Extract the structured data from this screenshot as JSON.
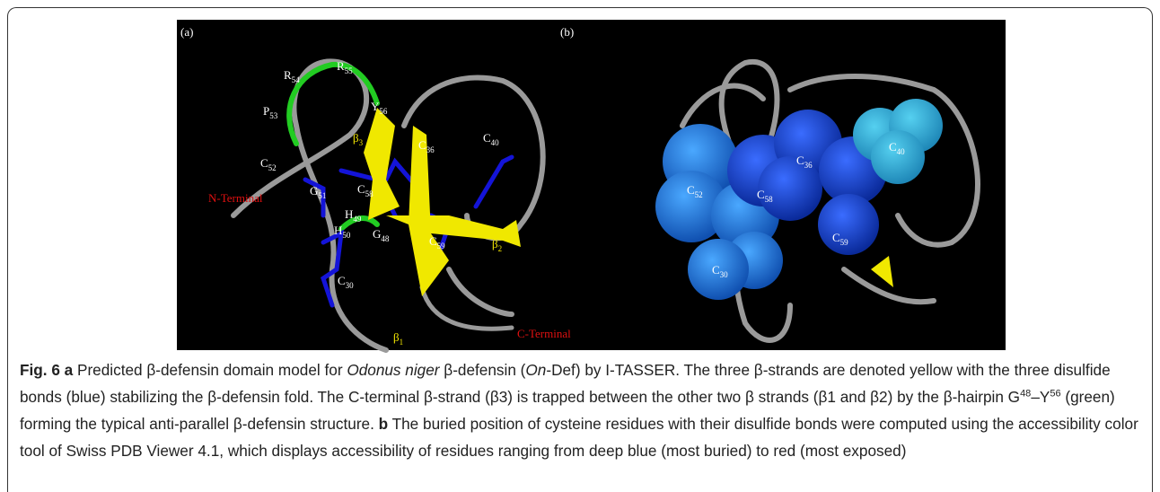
{
  "figure": {
    "panels": [
      {
        "label": "(a)",
        "residues": [
          {
            "name": "R",
            "num": "54",
            "color": "#ffffff"
          },
          {
            "name": "R",
            "num": "55",
            "color": "#ffffff"
          },
          {
            "name": "P",
            "num": "53",
            "color": "#ffffff"
          },
          {
            "name": "Y",
            "num": "56",
            "color": "#ffffff"
          },
          {
            "name": "β",
            "num": "3",
            "color": "#f2e600"
          },
          {
            "name": "C",
            "num": "36",
            "color": "#ffffff"
          },
          {
            "name": "C",
            "num": "40",
            "color": "#ffffff"
          },
          {
            "name": "C",
            "num": "52",
            "color": "#ffffff"
          },
          {
            "name": "G",
            "num": "51",
            "color": "#ffffff"
          },
          {
            "name": "C",
            "num": "58",
            "color": "#ffffff"
          },
          {
            "name": "N-Terminal",
            "num": "",
            "color": "#e01010"
          },
          {
            "name": "H",
            "num": "49",
            "color": "#ffffff"
          },
          {
            "name": "C",
            "num": "59",
            "color": "#ffffff"
          },
          {
            "name": "H",
            "num": "50",
            "color": "#ffffff"
          },
          {
            "name": "G",
            "num": "48",
            "color": "#ffffff"
          },
          {
            "name": "β",
            "num": "2",
            "color": "#f2e600"
          },
          {
            "name": "β",
            "num": "1",
            "color": "#f2e600"
          },
          {
            "name": "C",
            "num": "30",
            "color": "#ffffff"
          },
          {
            "name": "C-Terminal",
            "num": "",
            "color": "#e01010"
          }
        ]
      },
      {
        "label": "(b)",
        "residues": [
          {
            "name": "C",
            "num": "40",
            "color": "#ffffff"
          },
          {
            "name": "C",
            "num": "36",
            "color": "#ffffff"
          },
          {
            "name": "C",
            "num": "52",
            "color": "#ffffff"
          },
          {
            "name": "C",
            "num": "58",
            "color": "#ffffff"
          },
          {
            "name": "C",
            "num": "59",
            "color": "#ffffff"
          },
          {
            "name": "C",
            "num": "30",
            "color": "#ffffff"
          }
        ]
      }
    ],
    "caption": [
      {
        "text": "Fig. 6 a",
        "style": "bold"
      },
      {
        "text": " Predicted β-defensin domain model for ",
        "style": "normal"
      },
      {
        "text": "Odonus niger",
        "style": "italic"
      },
      {
        "text": " β-defensin (",
        "style": "normal"
      },
      {
        "text": "On",
        "style": "italic"
      },
      {
        "text": "-Def) by I-TASSER. The three β-strands are denoted yellow with the three disulfide bonds (blue) stabilizing the β-defensin fold. The C-terminal β-strand (β3) is trapped between the other two β strands (β1 and β2) by the β-hairpin G",
        "style": "normal"
      },
      {
        "text": "48",
        "style": "sup"
      },
      {
        "text": "–Y",
        "style": "normal"
      },
      {
        "text": "56",
        "style": "sup"
      },
      {
        "text": " (green) forming the typical anti-parallel β-defensin structure. ",
        "style": "normal"
      },
      {
        "text": "b",
        "style": "bold"
      },
      {
        "text": " The buried position of cysteine residues with their disulfide bonds were computed using the accessibility color tool of Swiss PDB Viewer 4.1, which displays accessibility of residues ranging from deep blue (most buried) to red (most exposed)",
        "style": "normal"
      }
    ]
  }
}
